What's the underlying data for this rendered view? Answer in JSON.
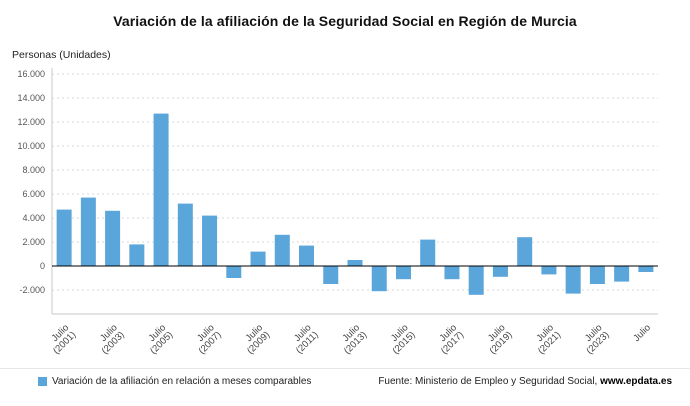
{
  "title": "Variación de la afiliación de la Seguridad Social en Región de Murcia",
  "units_label": "Personas (Unidades)",
  "legend": {
    "label": "Variación de la afiliación en relación a meses comparables",
    "color": "#5aa5da"
  },
  "source": {
    "prefix": "Fuente: Ministerio de Empleo y Seguridad Social, ",
    "site": "www.epdata.es"
  },
  "chart_data": {
    "type": "bar",
    "title": "Variación de la afiliación de la Seguridad Social en Región de Murcia",
    "ylabel": "Personas (Unidades)",
    "xlabel": "",
    "grid": true,
    "legend_position": "bottom",
    "bar_color": "#5aa5da",
    "ylim": [
      -4000,
      16000
    ],
    "ytick_step": 2000,
    "categories": [
      "2001",
      "2002",
      "2003",
      "2004",
      "2005",
      "2006",
      "2007",
      "2008",
      "2009",
      "2010",
      "2011",
      "2012",
      "2013",
      "2014",
      "2015",
      "2016",
      "2017",
      "2018",
      "2019",
      "2020",
      "2021",
      "2022",
      "2023",
      "2024",
      "2025"
    ],
    "values": [
      4700,
      5700,
      4600,
      1800,
      12700,
      5200,
      4200,
      -1000,
      1200,
      2600,
      1700,
      -1500,
      500,
      -2100,
      -1100,
      2200,
      -1100,
      -2400,
      -900,
      2400,
      -700,
      -2300,
      -1500,
      -1300,
      -500
    ],
    "tick_labels": [
      {
        "index": 0,
        "line1": "Julio",
        "line2": "(2001)"
      },
      {
        "index": 2,
        "line1": "Julio",
        "line2": "(2003)"
      },
      {
        "index": 4,
        "line1": "Julio",
        "line2": "(2005)"
      },
      {
        "index": 6,
        "line1": "Julio",
        "line2": "(2007)"
      },
      {
        "index": 8,
        "line1": "Julio",
        "line2": "(2009)"
      },
      {
        "index": 10,
        "line1": "Julio",
        "line2": "(2011)"
      },
      {
        "index": 12,
        "line1": "Julio",
        "line2": "(2013)"
      },
      {
        "index": 14,
        "line1": "Julio",
        "line2": "(2015)"
      },
      {
        "index": 16,
        "line1": "Julio",
        "line2": "(2017)"
      },
      {
        "index": 18,
        "line1": "Julio",
        "line2": "(2019)"
      },
      {
        "index": 20,
        "line1": "Julio",
        "line2": "(2021)"
      },
      {
        "index": 22,
        "line1": "Julio",
        "line2": "(2023)"
      },
      {
        "index": 24,
        "line1": "Julio",
        "line2": ""
      }
    ]
  }
}
